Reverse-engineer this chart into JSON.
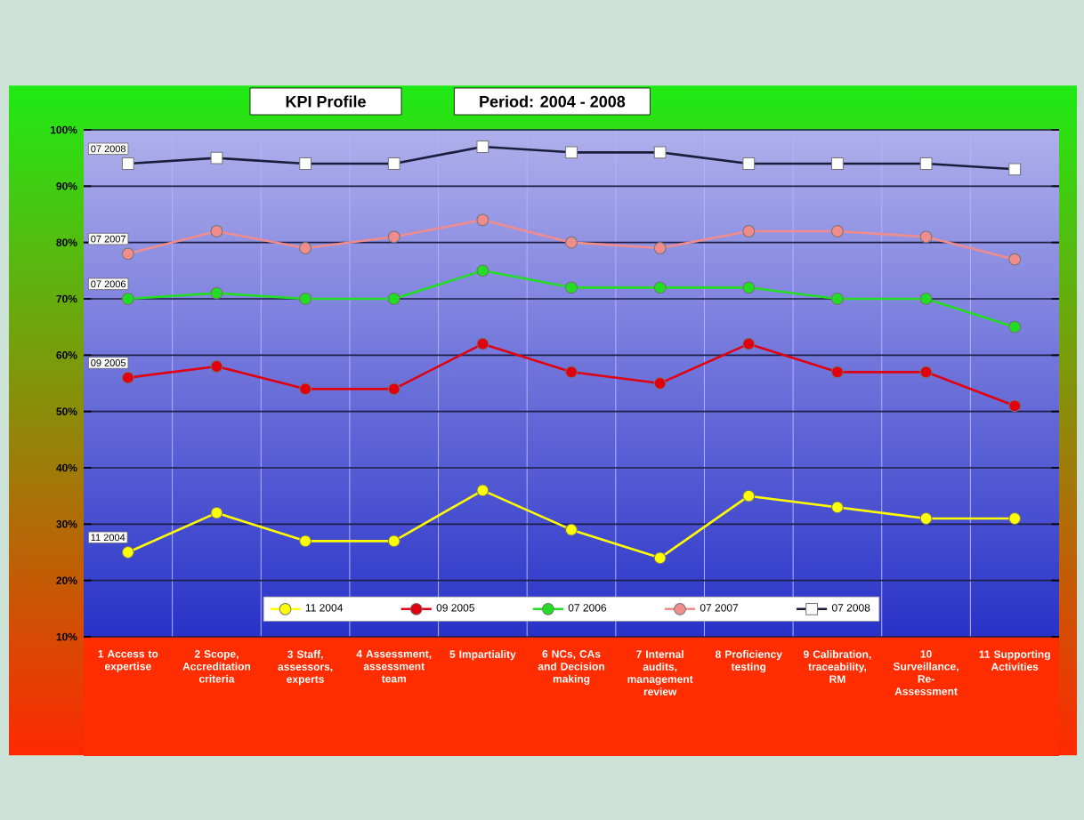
{
  "chart_data": {
    "type": "line",
    "title": "KPI Profile",
    "subtitle": "Period: 2004 - 2008",
    "categories": [
      "1 Access to expertise",
      "2 Scope, Accreditation criteria",
      "3 Staff, assessors, experts",
      "4 Assessment, assessment team",
      "5 Impartiality",
      "6 NCs, CAs and Decision making",
      "7 Internal audits, management review",
      "8 Proficiency testing",
      "9 Calibration, traceability, RM",
      "10 Surveillance, Re-Assessment",
      "11 Supporting Activities"
    ],
    "series": [
      {
        "name": "11 2004",
        "color": "#ffff00",
        "values": [
          25,
          32,
          27,
          27,
          36,
          29,
          24,
          35,
          33,
          31,
          31
        ]
      },
      {
        "name": "09 2005",
        "color": "#e00010",
        "values": [
          56,
          58,
          54,
          54,
          62,
          57,
          55,
          62,
          57,
          57,
          51
        ]
      },
      {
        "name": "07 2006",
        "color": "#22dd22",
        "values": [
          70,
          71,
          70,
          70,
          75,
          72,
          72,
          72,
          70,
          70,
          65
        ]
      },
      {
        "name": "07 2007",
        "color": "#f08c8c",
        "values": [
          78,
          82,
          79,
          81,
          84,
          80,
          79,
          82,
          82,
          81,
          77
        ]
      },
      {
        "name": "07 2008",
        "color": "#1c1c3c",
        "marker": "square",
        "values": [
          94,
          95,
          94,
          94,
          97,
          96,
          96,
          94,
          94,
          94,
          93
        ]
      }
    ],
    "ylim": [
      10,
      100
    ],
    "yticks": [
      {
        "value": 10,
        "label": "10%"
      },
      {
        "value": 20,
        "label": "20%"
      },
      {
        "value": 30,
        "label": "30%"
      },
      {
        "value": 40,
        "label": "40%"
      },
      {
        "value": 50,
        "label": "50%"
      },
      {
        "value": 60,
        "label": "60%"
      },
      {
        "value": 70,
        "label": "70%"
      },
      {
        "value": 80,
        "label": "80%"
      },
      {
        "value": 90,
        "label": "90%"
      },
      {
        "value": 100,
        "label": "100%"
      }
    ],
    "grid": true,
    "legend": "bottom",
    "marker": "circle",
    "line_style": "solid"
  }
}
